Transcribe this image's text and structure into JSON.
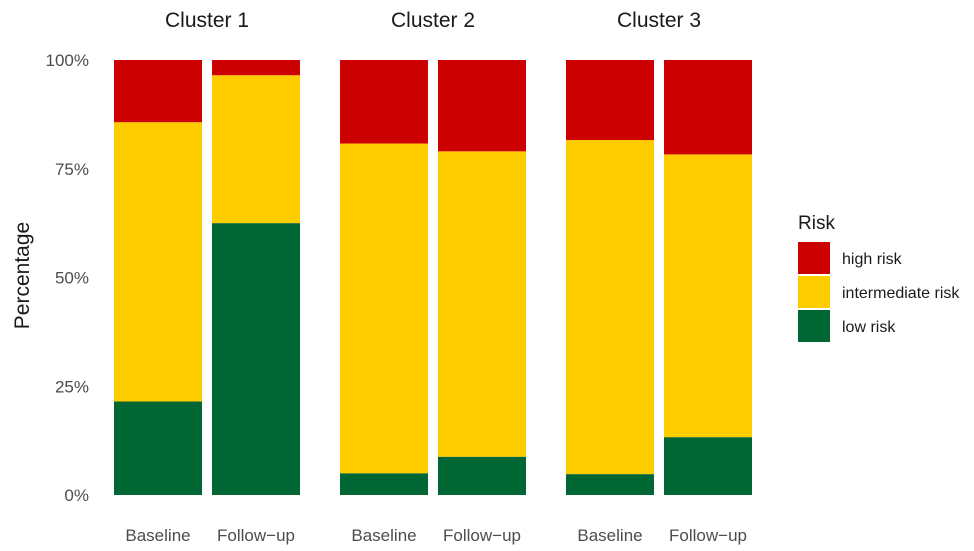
{
  "chart_data": {
    "type": "bar",
    "stacked": true,
    "orientation": "vertical",
    "ylabel": "Percentage",
    "xlabel": "",
    "ylim": [
      0,
      100
    ],
    "yticks": [
      "0%",
      "25%",
      "50%",
      "75%",
      "100%"
    ],
    "ytick_values": [
      0,
      25,
      50,
      75,
      100
    ],
    "grid": false,
    "legend": {
      "title": "Risk",
      "position": "right",
      "entries": [
        {
          "label": "high risk",
          "color": "#CC0000"
        },
        {
          "label": "intermediate risk",
          "color": "#FFCC00"
        },
        {
          "label": "low risk",
          "color": "#006633"
        }
      ]
    },
    "panels": [
      {
        "title": "Cluster 1",
        "categories": [
          "Baseline",
          "Follow−up"
        ],
        "series": [
          {
            "name": "low risk",
            "values": [
              21.5,
              62.5
            ]
          },
          {
            "name": "intermediate risk",
            "values": [
              64.2,
              34.0
            ]
          },
          {
            "name": "high risk",
            "values": [
              14.3,
              3.5
            ]
          }
        ]
      },
      {
        "title": "Cluster 2",
        "categories": [
          "Baseline",
          "Follow−up"
        ],
        "series": [
          {
            "name": "low risk",
            "values": [
              5.0,
              8.8
            ]
          },
          {
            "name": "intermediate risk",
            "values": [
              75.8,
              70.2
            ]
          },
          {
            "name": "high risk",
            "values": [
              19.2,
              21.0
            ]
          }
        ]
      },
      {
        "title": "Cluster 3",
        "categories": [
          "Baseline",
          "Follow−up"
        ],
        "series": [
          {
            "name": "low risk",
            "values": [
              4.8,
              13.3
            ]
          },
          {
            "name": "intermediate risk",
            "values": [
              76.8,
              65.0
            ]
          },
          {
            "name": "high risk",
            "values": [
              18.4,
              21.7
            ]
          }
        ]
      }
    ]
  }
}
